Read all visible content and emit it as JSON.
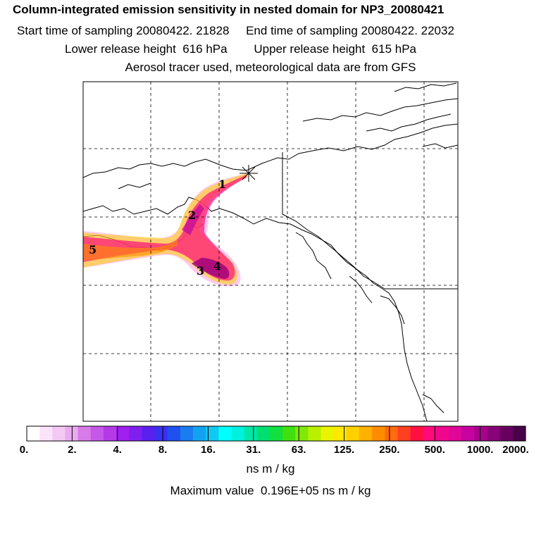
{
  "title_lines": [
    "Column-integrated emission sensitivity in nested domain for NP3_20080421",
    "Start time of sampling 20080422. 21828     End time of sampling 20080422. 22032",
    "Lower release height  616 hPa        Upper release height  615 hPa",
    "Aerosol tracer used, meteorological data are from GFS"
  ],
  "colorbar": {
    "tick_labels": [
      "0.",
      "2.",
      "4.",
      "8.",
      "16.",
      "31.",
      "63.",
      "125.",
      "250.",
      "500.",
      "1000.",
      "2000."
    ],
    "colors": [
      "#ffffff",
      "#fbe4fb",
      "#f3c8f3",
      "#eaaaf0",
      "#d87ae8",
      "#c558e8",
      "#b43ae8",
      "#a020f0",
      "#8020f0",
      "#5a20f0",
      "#3a30f0",
      "#2050f0",
      "#1a7cf0",
      "#12a2f0",
      "#10c8f0",
      "#00ffff",
      "#00f0e0",
      "#00e8a8",
      "#00e070",
      "#10e040",
      "#40e010",
      "#80e808",
      "#b8f000",
      "#e8f400",
      "#ffe800",
      "#ffd000",
      "#ffb000",
      "#ff8c00",
      "#ff6a10",
      "#ff4020",
      "#ff1040",
      "#ff0a78",
      "#f0088c",
      "#e00698",
      "#c804a0",
      "#a8028c",
      "#880278",
      "#680060",
      "#4a0048"
    ],
    "units": "ns m / kg"
  },
  "max_value_text": "Maximum value  0.196E+05 ns m / kg",
  "plume_labels": [
    "1",
    "2",
    "3",
    "4",
    "5"
  ]
}
